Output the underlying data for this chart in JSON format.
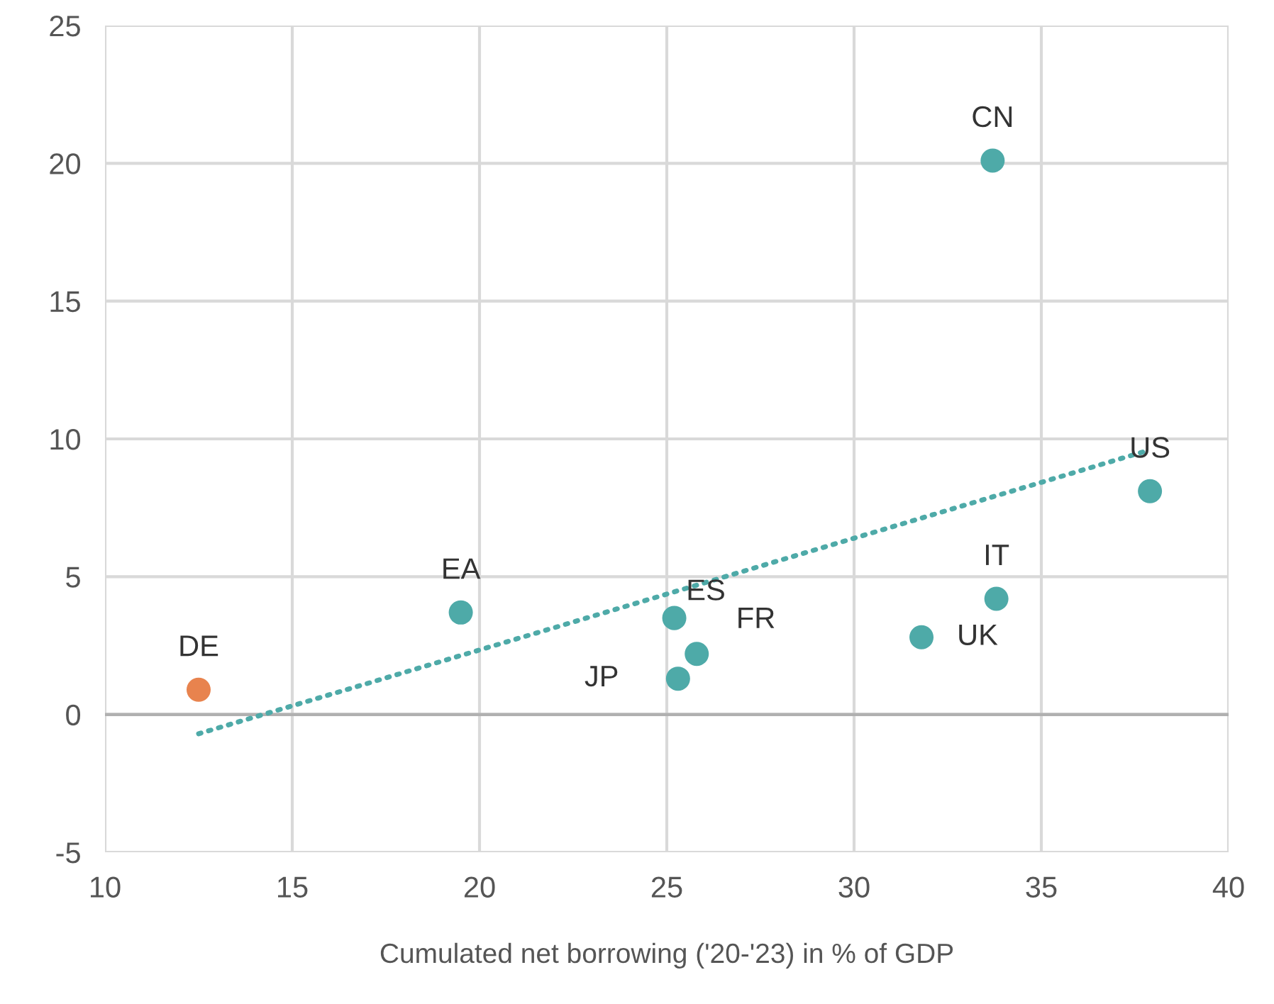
{
  "chart_data": {
    "type": "scatter",
    "xlabel": "Cumulated net borrowing ('20-'23) in % of GDP",
    "series": [
      {
        "x": [
          12.5,
          19.5,
          25.2,
          25.8,
          25.3,
          31.8,
          33.8,
          33.7,
          37.9
        ],
        "values": [
          0.9,
          3.7,
          3.5,
          2.2,
          1.3,
          2.8,
          4.2,
          20.1,
          8.1
        ],
        "colors": [
          "#e8834e",
          "#4eaaa8",
          "#4eaaa8",
          "#4eaaa8",
          "#4eaaa8",
          "#4eaaa8",
          "#4eaaa8",
          "#4eaaa8",
          "#4eaaa8"
        ],
        "marker": "circle"
      },
      {
        "type": "line",
        "x": [
          12.5,
          37.9
        ],
        "values": [
          -0.7,
          9.6
        ],
        "color": "#4eaaa8",
        "line_style": "dotted"
      }
    ],
    "annotations": [
      {
        "text": "DE",
        "x": 12.5,
        "y": 0.9
      },
      {
        "text": "EA",
        "x": 19.5,
        "y": 3.7
      },
      {
        "text": "ES",
        "x": 25.2,
        "y": 3.5
      },
      {
        "text": "FR",
        "x": 25.8,
        "y": 2.2
      },
      {
        "text": "JP",
        "x": 25.3,
        "y": 1.3
      },
      {
        "text": "UK",
        "x": 31.8,
        "y": 2.8
      },
      {
        "text": "IT",
        "x": 33.8,
        "y": 4.2
      },
      {
        "text": "CN",
        "x": 33.7,
        "y": 20.1
      },
      {
        "text": "US",
        "x": 37.9,
        "y": 8.1
      }
    ],
    "ref_lines": [
      {
        "axis": "y",
        "value": 0,
        "color": "#b0b0b0"
      }
    ],
    "xlim": [
      10,
      40
    ],
    "xticks": [
      10,
      15,
      20,
      25,
      30,
      35,
      40
    ],
    "ylim": [
      -5,
      25
    ],
    "yticks": [
      {
        "value": -5,
        "label": "-5"
      },
      0,
      5,
      10,
      15,
      20,
      25
    ],
    "grid": true
  }
}
